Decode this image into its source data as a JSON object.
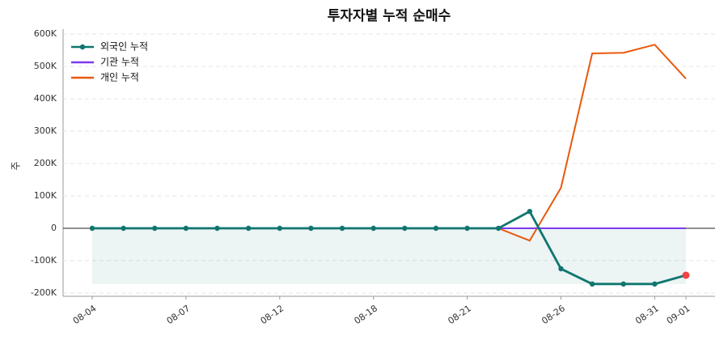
{
  "chart_data": {
    "type": "line",
    "title": "투자자별 누적 순매수",
    "y_label": "주",
    "categories": [
      "08-04",
      null,
      null,
      "08-07",
      null,
      null,
      "08-12",
      null,
      null,
      "08-18",
      null,
      null,
      "08-21",
      null,
      null,
      "08-26",
      null,
      null,
      "08-31",
      "09-01"
    ],
    "series": [
      {
        "name": "외국인 누적",
        "color": "#0f766e",
        "values": [
          0,
          0,
          0,
          0,
          0,
          0,
          0,
          0,
          0,
          0,
          0,
          0,
          0,
          0,
          52000,
          -125000,
          -172000,
          -172000,
          -172000,
          -145000
        ]
      },
      {
        "name": "기관 누적",
        "color": "#7c3aed",
        "values": [
          0,
          0,
          0,
          0,
          0,
          0,
          0,
          0,
          0,
          0,
          0,
          0,
          0,
          0,
          0,
          0,
          0,
          0,
          0,
          0
        ]
      },
      {
        "name": "개인 누적",
        "color": "#ea580c",
        "values": [
          0,
          0,
          0,
          0,
          0,
          0,
          0,
          0,
          0,
          0,
          0,
          0,
          0,
          0,
          -38000,
          125000,
          540000,
          542000,
          567000,
          462000
        ]
      }
    ],
    "ylim": [
      -210000,
      615000
    ],
    "yticks": [
      {
        "value": -200000,
        "label": "-200K"
      },
      {
        "value": -100000,
        "label": "-100K"
      },
      0,
      {
        "value": 100000,
        "label": "100K"
      },
      {
        "value": 200000,
        "label": "200K"
      },
      {
        "value": 300000,
        "label": "300K"
      },
      {
        "value": 400000,
        "label": "400K"
      },
      {
        "value": 500000,
        "label": "500K"
      },
      {
        "value": 600000,
        "label": "600K"
      }
    ],
    "grid": true,
    "legend": "upper-left",
    "highlight_color": "#ef4444"
  }
}
